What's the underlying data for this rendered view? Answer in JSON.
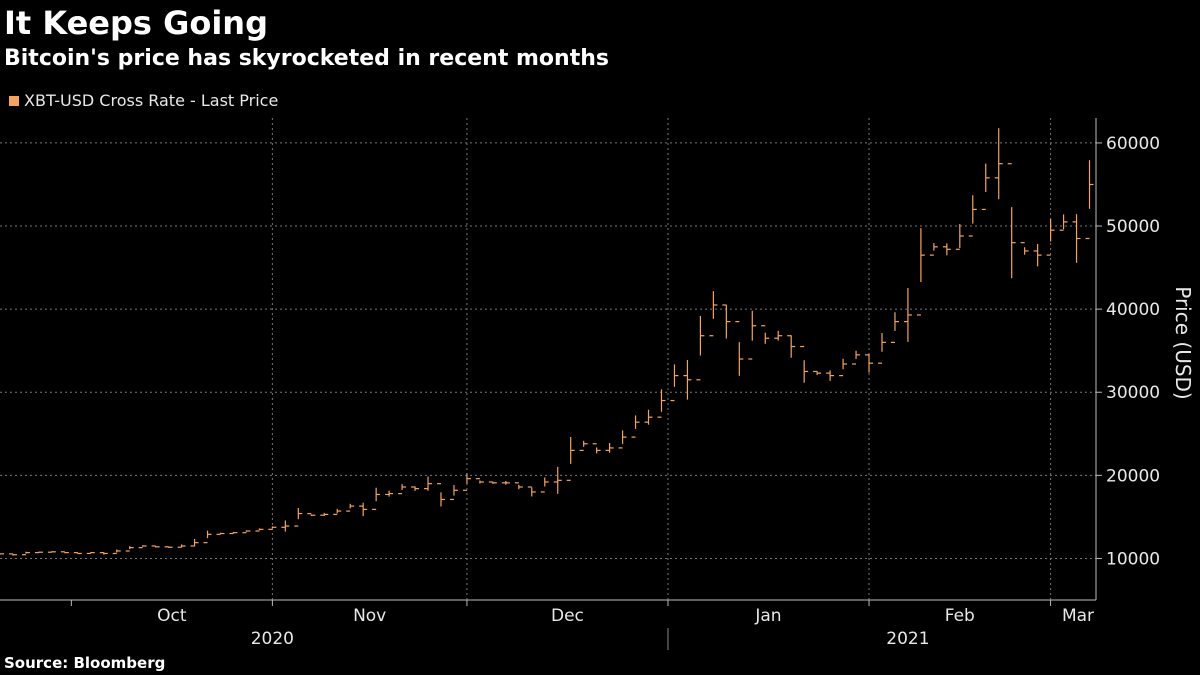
{
  "title": "It Keeps Going",
  "subtitle": "Bitcoin's price has skyrocketed in recent months",
  "source": "Source: Bloomberg",
  "chart_data": {
    "type": "bar",
    "subtype": "ohlc",
    "series_name": "XBT-USD Cross Rate - Last Price",
    "series_color": "#f4a460",
    "ylabel": "Price (USD)",
    "ylim": [
      5000,
      63000
    ],
    "yticks": [
      10000,
      20000,
      30000,
      40000,
      50000,
      60000
    ],
    "xlim": [
      "2020-09-20",
      "2021-03-08"
    ],
    "month_ticks": [
      {
        "label": "Oct",
        "date": "2020-10-01"
      },
      {
        "label": "Nov",
        "date": "2020-11-01"
      },
      {
        "label": "Dec",
        "date": "2020-12-01"
      },
      {
        "label": "Jan",
        "date": "2021-01-01"
      },
      {
        "label": "Feb",
        "date": "2021-02-01"
      },
      {
        "label": "Mar",
        "date": "2021-03-01"
      }
    ],
    "year_labels": [
      {
        "label": "2020",
        "date": "2020-11-01"
      },
      {
        "label": "2021",
        "date": "2021-02-07"
      }
    ],
    "year_divider": "2021-01-01",
    "grid": true,
    "legend_position": "top-left",
    "y_axis_position": "right",
    "points": [
      {
        "x": "2020-09-20",
        "v": 10550
      },
      {
        "x": "2020-09-22",
        "v": 10450
      },
      {
        "x": "2020-09-24",
        "v": 10700
      },
      {
        "x": "2020-09-26",
        "v": 10750
      },
      {
        "x": "2020-09-28",
        "v": 10800
      },
      {
        "x": "2020-09-30",
        "v": 10700
      },
      {
        "x": "2020-10-02",
        "v": 10600
      },
      {
        "x": "2020-10-04",
        "v": 10700
      },
      {
        "x": "2020-10-06",
        "v": 10600
      },
      {
        "x": "2020-10-08",
        "v": 10900
      },
      {
        "x": "2020-10-10",
        "v": 11300
      },
      {
        "x": "2020-10-12",
        "v": 11500
      },
      {
        "x": "2020-10-14",
        "v": 11400
      },
      {
        "x": "2020-10-16",
        "v": 11350
      },
      {
        "x": "2020-10-18",
        "v": 11500
      },
      {
        "x": "2020-10-20",
        "v": 11900
      },
      {
        "x": "2020-10-22",
        "v": 12900
      },
      {
        "x": "2020-10-24",
        "v": 13000
      },
      {
        "x": "2020-10-26",
        "v": 13100
      },
      {
        "x": "2020-10-28",
        "v": 13300
      },
      {
        "x": "2020-10-30",
        "v": 13500
      },
      {
        "x": "2020-11-01",
        "v": 13750
      },
      {
        "x": "2020-11-03",
        "v": 13900
      },
      {
        "x": "2020-11-05",
        "v": 15400
      },
      {
        "x": "2020-11-07",
        "v": 15200
      },
      {
        "x": "2020-11-09",
        "v": 15300
      },
      {
        "x": "2020-11-11",
        "v": 15700
      },
      {
        "x": "2020-11-13",
        "v": 16300
      },
      {
        "x": "2020-11-15",
        "v": 15900
      },
      {
        "x": "2020-11-17",
        "v": 17700
      },
      {
        "x": "2020-11-19",
        "v": 17800
      },
      {
        "x": "2020-11-21",
        "v": 18600
      },
      {
        "x": "2020-11-23",
        "v": 18400
      },
      {
        "x": "2020-11-25",
        "v": 19000
      },
      {
        "x": "2020-11-27",
        "v": 17100
      },
      {
        "x": "2020-11-29",
        "v": 18200
      },
      {
        "x": "2020-12-01",
        "v": 19600
      },
      {
        "x": "2020-12-03",
        "v": 19200
      },
      {
        "x": "2020-12-05",
        "v": 19100
      },
      {
        "x": "2020-12-07",
        "v": 19100
      },
      {
        "x": "2020-12-09",
        "v": 18600
      },
      {
        "x": "2020-12-11",
        "v": 18000
      },
      {
        "x": "2020-12-13",
        "v": 19200
      },
      {
        "x": "2020-12-15",
        "v": 19400
      },
      {
        "x": "2020-12-17",
        "v": 23000
      },
      {
        "x": "2020-12-19",
        "v": 23800
      },
      {
        "x": "2020-12-21",
        "v": 23000
      },
      {
        "x": "2020-12-23",
        "v": 23300
      },
      {
        "x": "2020-12-25",
        "v": 24600
      },
      {
        "x": "2020-12-27",
        "v": 26400
      },
      {
        "x": "2020-12-29",
        "v": 27000
      },
      {
        "x": "2020-12-31",
        "v": 29000
      },
      {
        "x": "2021-01-02",
        "v": 32000
      },
      {
        "x": "2021-01-04",
        "v": 31500
      },
      {
        "x": "2021-01-06",
        "v": 36800
      },
      {
        "x": "2021-01-08",
        "v": 40500
      },
      {
        "x": "2021-01-10",
        "v": 38500
      },
      {
        "x": "2021-01-12",
        "v": 34000
      },
      {
        "x": "2021-01-14",
        "v": 38000
      },
      {
        "x": "2021-01-16",
        "v": 36500
      },
      {
        "x": "2021-01-18",
        "v": 36800
      },
      {
        "x": "2021-01-20",
        "v": 35500
      },
      {
        "x": "2021-01-22",
        "v": 32500
      },
      {
        "x": "2021-01-24",
        "v": 32300
      },
      {
        "x": "2021-01-26",
        "v": 32000
      },
      {
        "x": "2021-01-28",
        "v": 33400
      },
      {
        "x": "2021-01-30",
        "v": 34500
      },
      {
        "x": "2021-02-01",
        "v": 33500
      },
      {
        "x": "2021-02-03",
        "v": 36000
      },
      {
        "x": "2021-02-05",
        "v": 38500
      },
      {
        "x": "2021-02-07",
        "v": 39300
      },
      {
        "x": "2021-02-09",
        "v": 46500
      },
      {
        "x": "2021-02-11",
        "v": 47500
      },
      {
        "x": "2021-02-13",
        "v": 47200
      },
      {
        "x": "2021-02-15",
        "v": 48800
      },
      {
        "x": "2021-02-17",
        "v": 52000
      },
      {
        "x": "2021-02-19",
        "v": 55800
      },
      {
        "x": "2021-02-21",
        "v": 57500
      },
      {
        "x": "2021-02-23",
        "v": 48000
      },
      {
        "x": "2021-02-25",
        "v": 47000
      },
      {
        "x": "2021-02-27",
        "v": 46500
      },
      {
        "x": "2021-03-01",
        "v": 49500
      },
      {
        "x": "2021-03-03",
        "v": 50500
      },
      {
        "x": "2021-03-05",
        "v": 48500
      },
      {
        "x": "2021-03-07",
        "v": 55000
      }
    ]
  }
}
